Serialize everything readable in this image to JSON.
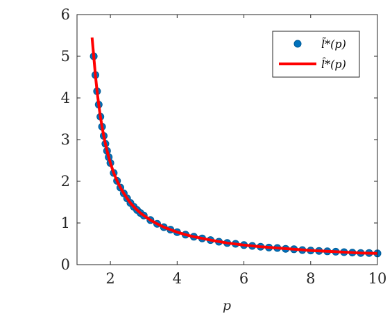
{
  "chart_data": {
    "type": "scatter",
    "xlabel": "p",
    "ylabel": "",
    "title": "",
    "xlim": [
      1,
      10
    ],
    "ylim": [
      0,
      6
    ],
    "xticks": [
      2,
      4,
      6,
      8,
      10
    ],
    "yticks": [
      0,
      1,
      2,
      3,
      4,
      5,
      6
    ],
    "grid": false,
    "legend_position": "top-right",
    "series": [
      {
        "name": "l̃*(p)",
        "kind": "markers",
        "color": "#0072BD",
        "x": [
          1.5,
          1.55,
          1.6,
          1.65,
          1.7,
          1.75,
          1.8,
          1.85,
          1.9,
          1.95,
          2.0,
          2.1,
          2.2,
          2.3,
          2.4,
          2.5,
          2.6,
          2.7,
          2.8,
          2.9,
          3.0,
          3.2,
          3.4,
          3.6,
          3.8,
          4.0,
          4.25,
          4.5,
          4.75,
          5.0,
          5.25,
          5.5,
          5.75,
          6.0,
          6.25,
          6.5,
          6.75,
          7.0,
          7.25,
          7.5,
          7.75,
          8.0,
          8.25,
          8.5,
          8.75,
          9.0,
          9.25,
          9.5,
          9.75,
          10.0
        ],
        "y": [
          5.0,
          4.55,
          4.16,
          3.84,
          3.55,
          3.31,
          3.09,
          2.9,
          2.73,
          2.58,
          2.44,
          2.2,
          2.01,
          1.85,
          1.71,
          1.59,
          1.48,
          1.39,
          1.31,
          1.24,
          1.18,
          1.07,
          0.98,
          0.9,
          0.84,
          0.78,
          0.72,
          0.67,
          0.63,
          0.59,
          0.55,
          0.52,
          0.5,
          0.47,
          0.45,
          0.43,
          0.41,
          0.4,
          0.38,
          0.37,
          0.35,
          0.34,
          0.33,
          0.32,
          0.31,
          0.3,
          0.29,
          0.28,
          0.28,
          0.27
        ]
      },
      {
        "name": "l̂*(p)",
        "kind": "line",
        "color": "#FF0000",
        "x": [
          1.45,
          1.5,
          1.55,
          1.6,
          1.65,
          1.7,
          1.75,
          1.8,
          1.85,
          1.9,
          1.95,
          2.0,
          2.1,
          2.2,
          2.3,
          2.4,
          2.5,
          2.6,
          2.7,
          2.8,
          2.9,
          3.0,
          3.2,
          3.4,
          3.6,
          3.8,
          4.0,
          4.25,
          4.5,
          4.75,
          5.0,
          5.5,
          6.0,
          6.5,
          7.0,
          7.5,
          8.0,
          8.5,
          9.0,
          9.5,
          10.0
        ],
        "y": [
          5.45,
          5.0,
          4.55,
          4.16,
          3.84,
          3.55,
          3.31,
          3.09,
          2.9,
          2.73,
          2.58,
          2.44,
          2.2,
          2.01,
          1.85,
          1.71,
          1.59,
          1.48,
          1.39,
          1.31,
          1.24,
          1.18,
          1.07,
          0.98,
          0.9,
          0.84,
          0.78,
          0.72,
          0.67,
          0.63,
          0.59,
          0.52,
          0.47,
          0.43,
          0.4,
          0.37,
          0.34,
          0.32,
          0.3,
          0.28,
          0.27
        ]
      }
    ]
  }
}
